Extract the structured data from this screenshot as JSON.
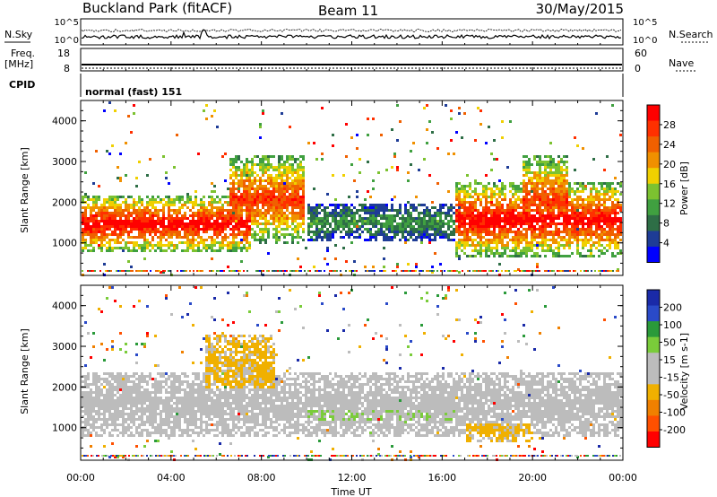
{
  "header": {
    "station": "Buckland Park (fitACF)",
    "beam": "Beam 11",
    "date": "30/May/2015"
  },
  "strip": {
    "nsky_label": "N.Sky",
    "nsearch_label": "N.Search",
    "noise_ticks": [
      "10^5",
      "10^0"
    ],
    "freq_label_1": "Freq.",
    "freq_label_2": "[MHz]",
    "freq_ticks": [
      "18",
      "8"
    ],
    "nave_label": "Nave",
    "nave_ticks": [
      "60",
      "0"
    ],
    "cpid_label": "CPID",
    "cpid_value": "normal (fast) 151"
  },
  "time_axis": {
    "ticks": [
      "00:00",
      "04:00",
      "08:00",
      "12:00",
      "16:00",
      "20:00",
      "00:00"
    ],
    "label": "Time UT"
  },
  "colors": {
    "power_scale": [
      "#0000ff",
      "#1e3c96",
      "#2e6e46",
      "#40a040",
      "#7cc230",
      "#f0d000",
      "#f09000",
      "#f06000",
      "#ff3000",
      "#ff0000"
    ],
    "velocity_scale": [
      "#1a2aa8",
      "#2a4ac8",
      "#2a9a3a",
      "#7acc3a",
      "#bcbcbc",
      "#bcbcbc",
      "#f0b000",
      "#f08000",
      "#ff5000",
      "#ff0000"
    ]
  },
  "chart_data": [
    {
      "type": "heatmap",
      "quantity": "Power",
      "ylabel": "Slant Range [km]",
      "xlabel": "Time UT",
      "x_range_hours": [
        0,
        24
      ],
      "ylim_km": [
        200,
        4500
      ],
      "y_ticks": [
        1000,
        2000,
        3000,
        4000
      ],
      "colorbar": {
        "label": "Power [dB]",
        "ticks": [
          "28",
          "24",
          "20",
          "16",
          "12",
          "8",
          "4"
        ],
        "range": [
          0,
          30
        ]
      },
      "features": [
        {
          "name": "main-band",
          "t_start": 0,
          "t_end": 7.5,
          "range_lo": 800,
          "range_hi": 2200,
          "peak_power": 30
        },
        {
          "name": "arc-morning",
          "t_start": 6.5,
          "t_end": 9.8,
          "range_lo": 1000,
          "range_hi": 3200,
          "peak_power": 26
        },
        {
          "name": "weak-midday",
          "t_start": 10,
          "t_end": 16.5,
          "range_lo": 1100,
          "range_hi": 2000,
          "peak_power": 10
        },
        {
          "name": "evening-band",
          "t_start": 16.5,
          "t_end": 24,
          "range_lo": 700,
          "range_hi": 2500,
          "peak_power": 30
        },
        {
          "name": "arc-evening",
          "t_start": 19.5,
          "t_end": 21.5,
          "range_lo": 900,
          "range_hi": 3200,
          "peak_power": 26
        }
      ]
    },
    {
      "type": "heatmap",
      "quantity": "Velocity",
      "ylabel": "Slant Range [km]",
      "xlabel": "Time UT",
      "x_range_hours": [
        0,
        24
      ],
      "ylim_km": [
        200,
        4500
      ],
      "y_ticks": [
        1000,
        2000,
        3000,
        4000
      ],
      "colorbar": {
        "label": "Velocity [m s-1]",
        "ticks": [
          "200",
          "100",
          "50",
          "15",
          "-15",
          "-50",
          "-100",
          "-200"
        ],
        "range": [
          -250,
          250
        ]
      },
      "features": [
        {
          "name": "ground-scatter",
          "t_start": 0,
          "t_end": 24,
          "range_lo": 800,
          "range_hi": 2400,
          "velocity": 0
        },
        {
          "name": "negative-morning",
          "t_start": 5.5,
          "t_end": 8.5,
          "range_lo": 1500,
          "range_hi": 3300,
          "velocity": -60
        },
        {
          "name": "positive-midday",
          "t_start": 10,
          "t_end": 16.5,
          "range_lo": 1000,
          "range_hi": 1800,
          "velocity": 40
        },
        {
          "name": "negative-evening",
          "t_start": 17,
          "t_end": 20,
          "range_lo": 700,
          "range_hi": 1300,
          "velocity": -60
        }
      ]
    }
  ]
}
